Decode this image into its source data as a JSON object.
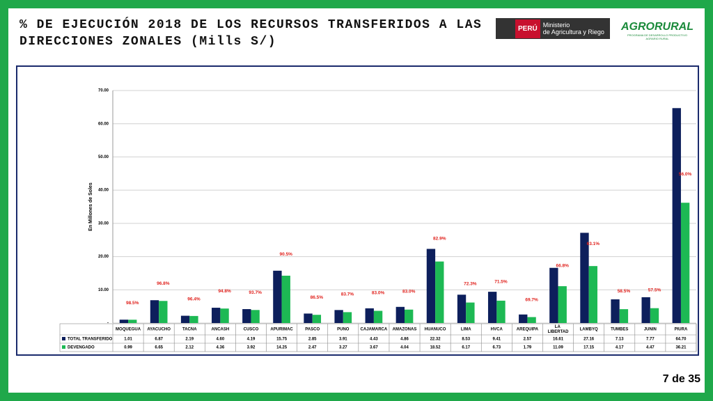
{
  "header": {
    "title_line1": "% DE EJECUCIÓN 2018 DE LOS RECURSOS TRANSFERIDOS A LAS",
    "title_line2": "DIRECCIONES ZONALES (Mills S/)",
    "peru": "PERÚ",
    "ministry_line1": "Ministerio",
    "ministry_line2": "de Agricultura y Riego",
    "agrorural": "AGRORURAL",
    "agrorural_sub": "PROGRAMA DE DESARROLLO PRODUCTIVO AGRARIO RURAL"
  },
  "chart_data": {
    "type": "bar",
    "y_label": "En Millones de Soles",
    "categories": [
      "MOQUEGUA",
      "AYACUCHO",
      "TACNA",
      "ANCASH",
      "CUSCO",
      "APURIMAC",
      "PASCO",
      "PUNO",
      "CAJAMARCA",
      "AMAZONAS",
      "HUANUCO",
      "LIMA",
      "HVCA",
      "AREQUIPA",
      "LA LIBERTAD",
      "LAMBYQ",
      "TUMBES",
      "JUNIN",
      "PIURA"
    ],
    "series": [
      {
        "name": "TOTAL TRANSFERIDO",
        "color": "#0d1f5c",
        "values": [
          1.01,
          6.87,
          2.19,
          4.6,
          4.19,
          15.75,
          2.85,
          3.91,
          4.43,
          4.86,
          22.32,
          8.53,
          9.41,
          2.57,
          16.61,
          27.16,
          7.13,
          7.77,
          64.7
        ],
        "value_labels": [
          "1.01",
          "6.87",
          "2.19",
          "4.60",
          "4.19",
          "15.75",
          "2.85",
          "3.91",
          "4.43",
          "4.86",
          "22.32",
          "8.53",
          "9.41",
          "2.57",
          "16.61",
          "27.16",
          "7.13",
          "7.77",
          "64.70"
        ]
      },
      {
        "name": "DEVENGADO",
        "color": "#1db954",
        "values": [
          0.99,
          6.65,
          2.12,
          4.36,
          3.92,
          14.25,
          2.47,
          3.27,
          3.67,
          4.04,
          18.52,
          6.17,
          6.73,
          1.79,
          11.09,
          17.15,
          4.17,
          4.47,
          36.21
        ],
        "value_labels": [
          "0.99",
          "6.65",
          "2.12",
          "4.36",
          "3.92",
          "14.25",
          "2.47",
          "3.27",
          "3.67",
          "4.04",
          "18.52",
          "6.17",
          "6.73",
          "1.79",
          "11.09",
          "17.15",
          "4.17",
          "4.47",
          "36.21"
        ]
      }
    ],
    "execution": {
      "color": "#e0201b",
      "values": [
        98.5,
        96.8,
        96.4,
        94.8,
        93.7,
        90.5,
        86.5,
        83.7,
        83.0,
        83.0,
        82.9,
        72.3,
        71.5,
        69.7,
        66.8,
        63.1,
        58.5,
        57.5,
        56.0
      ],
      "value_labels": [
        "98.5%",
        "96.8%",
        "96.4%",
        "94.8%",
        "93.7%",
        "90.5%",
        "86.5%",
        "83.7%",
        "83.0%",
        "83.0%",
        "82.9%",
        "72.3%",
        "71.5%",
        "69.7%",
        "66.8%",
        "63.1%",
        "58.5%",
        "57.5%",
        "56.0%"
      ]
    },
    "ylim": [
      0,
      70
    ],
    "yticks": [
      {
        "value": 0,
        "label": "-"
      },
      {
        "value": 10,
        "label": "10.00"
      },
      {
        "value": 20,
        "label": "20.00"
      },
      {
        "value": 30,
        "label": "30.00"
      },
      {
        "value": 40,
        "label": "40.00"
      },
      {
        "value": 50,
        "label": "50.00"
      },
      {
        "value": 60,
        "label": "60.00"
      },
      {
        "value": 70,
        "label": "70.00"
      }
    ],
    "grid": true
  },
  "footer": {
    "page": "7 de 35"
  }
}
